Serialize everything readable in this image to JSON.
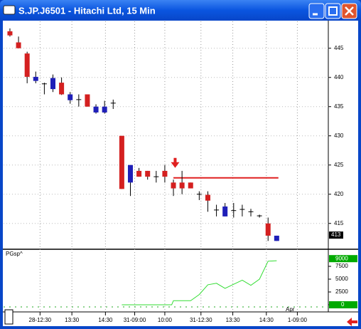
{
  "window": {
    "title": "S.JP.J6501 - Hitachi Ltd, 15 Min"
  },
  "chart_data": [
    {
      "type": "candlestick",
      "up_color": "#1f1fb8",
      "down_color": "#d42020",
      "open": [
        447.9,
        446,
        444.1,
        439.4,
        438.9,
        438,
        439.1,
        436.1,
        436.2,
        437.1,
        434,
        434,
        435.6,
        430,
        422,
        424,
        424,
        423,
        424,
        422,
        422,
        422,
        420,
        419.9,
        417.3,
        416.2,
        417.2,
        417.4,
        417,
        416.3,
        415,
        412
      ],
      "high": [
        448.4,
        447,
        444.4,
        441,
        439.1,
        440.5,
        440,
        437.5,
        437.1,
        437.1,
        435.4,
        436,
        436.2,
        430,
        425,
        424.5,
        424,
        424,
        425,
        422.5,
        424,
        422,
        420.5,
        420.5,
        418.2,
        418.5,
        418.5,
        418.2,
        417.5,
        416.5,
        416,
        412.9
      ],
      "low": [
        447,
        445,
        439,
        439,
        437.1,
        437.5,
        437,
        435.5,
        435,
        435,
        433.8,
        433.8,
        434.6,
        420.9,
        419.7,
        423,
        422.5,
        422,
        422,
        419.7,
        420,
        421,
        419,
        417,
        416.2,
        416.2,
        416,
        416.2,
        416.2,
        416,
        412,
        412
      ],
      "close": [
        447.2,
        445,
        440.1,
        440.1,
        438.9,
        439.9,
        437.1,
        437.1,
        436.2,
        435,
        435,
        435,
        435.6,
        420.9,
        425,
        423,
        423,
        423,
        423,
        421,
        421,
        421,
        420,
        418.9,
        417.3,
        417.9,
        417.2,
        417.4,
        417,
        416.3,
        412.9,
        412.9
      ],
      "ylim": [
        410.7,
        449.6
      ],
      "yticks": [
        415,
        420,
        425,
        430,
        435,
        440,
        445
      ],
      "xlim": [
        -0.74,
        37
      ],
      "xticks": [
        {
          "value": 3.5,
          "label": "28-12:30"
        },
        {
          "value": 7.2,
          "label": "13:30"
        },
        {
          "value": 11.1,
          "label": "14:30"
        },
        {
          "value": 14.5,
          "label": "31-09:00"
        },
        {
          "value": 18,
          "label": "10:00"
        },
        {
          "value": 22.2,
          "label": "31-12:30"
        },
        {
          "value": 25.9,
          "label": "13:30"
        },
        {
          "value": 29.8,
          "label": "14:30"
        },
        {
          "value": 33.4,
          "label": "1-09:00"
        }
      ],
      "last_price": 413,
      "level_line": {
        "value": 422.8,
        "from": 19,
        "to": 31.2,
        "color": "#e02020"
      },
      "arrow_at": 19.2
    },
    {
      "type": "line",
      "series": [
        {
          "name": "PGsp^",
          "color": "#33dd33",
          "x": [
            13,
            18.8,
            19,
            21,
            22,
            23,
            24,
            25,
            26,
            27,
            28,
            29,
            30,
            31
          ],
          "values": [
            0,
            0,
            800,
            800,
            2000,
            3900,
            4200,
            3200,
            4000,
            4800,
            3800,
            5000,
            8500,
            8600
          ]
        }
      ],
      "ylim": [
        -1250,
        10694
      ],
      "yticks": [
        0,
        2500,
        5000,
        7500
      ],
      "last_value": 9000,
      "extra_label": "Apr"
    }
  ]
}
